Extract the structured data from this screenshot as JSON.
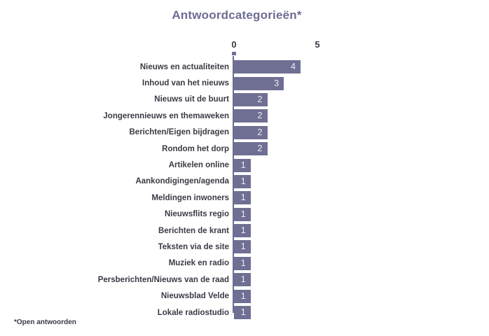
{
  "chart": {
    "title": "Antwoordcategorieën*",
    "footnote": "*Open antwoorden"
  },
  "chart_data": {
    "type": "bar",
    "orientation": "horizontal",
    "title": "Antwoordcategorieën*",
    "footnote": "*Open antwoorden",
    "categories": [
      "Nieuws en actualiteiten",
      "Inhoud van het nieuws",
      "Nieuws uit de buurt",
      "Jongerennieuws en themaweken",
      "Berichten/Eigen bijdragen",
      "Rondom het dorp",
      "Artikelen online",
      "Aankondigingen/agenda",
      "Meldingen inwoners",
      "Nieuwsflits regio",
      "Berichten de krant",
      "Teksten via de site",
      "Muziek en radio",
      "Persberichten/Nieuws van de raad",
      "Nieuwsblad Velde",
      "Lokale radiostudio"
    ],
    "values": [
      4,
      3,
      2,
      2,
      2,
      2,
      1,
      1,
      1,
      1,
      1,
      1,
      1,
      1,
      1,
      1
    ],
    "xlim": [
      0,
      5
    ],
    "xticks": [
      0,
      5
    ],
    "xtick_labels": [
      "0",
      "5"
    ],
    "grid": false,
    "legend": "none",
    "bar_color": "#6F6F94",
    "value_label_color": "#EDEDF2",
    "title_color": "#6C6C94",
    "label_color": "#3A3A45",
    "pixels_per_unit": 23.75
  }
}
